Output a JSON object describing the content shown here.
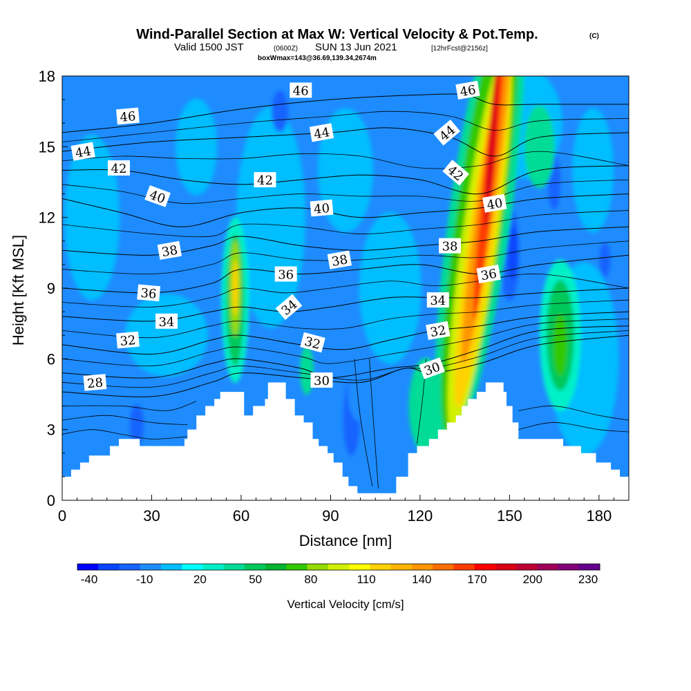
{
  "header": {
    "title": "Wind-Parallel Section at Max W: Vertical Velocity & Pot.Temp.",
    "title_mark": "(C)",
    "valid_prefix": "Valid 1500 JST",
    "valid_utc": "(0600Z)",
    "valid_date": "SUN 13 Jun 2021",
    "forecast_note": "[12hrFcst@2156z]",
    "box_note": "boxWmax=143@36.69,139.34,2674m"
  },
  "chart_data": {
    "type": "heatmap",
    "xlabel": "Distance [nm]",
    "ylabel": "Height [Kft MSL]",
    "xlim": [
      0,
      190
    ],
    "ylim": [
      0,
      18
    ],
    "x_ticks": [
      0,
      30,
      60,
      90,
      120,
      150,
      180
    ],
    "y_ticks": [
      0,
      3,
      6,
      9,
      12,
      15,
      18
    ],
    "colorbar": {
      "title": "Vertical Velocity [cm/s]",
      "labels": [
        "-40",
        "-10",
        "20",
        "50",
        "80",
        "110",
        "140",
        "170",
        "200",
        "230"
      ],
      "colors": [
        "#0000ff",
        "#0a46ff",
        "#1464ff",
        "#1e8cff",
        "#00beff",
        "#00ffff",
        "#00f0c8",
        "#00dc96",
        "#00c85a",
        "#00b432",
        "#32c800",
        "#96dc00",
        "#d2f000",
        "#ffff00",
        "#ffd200",
        "#ffb400",
        "#ff9600",
        "#ff6e00",
        "#ff3c00",
        "#ff0000",
        "#dc0014",
        "#be0032",
        "#a0005a",
        "#820078",
        "#64008c"
      ]
    },
    "terrain": [
      [
        0,
        1.0
      ],
      [
        3,
        1.0
      ],
      [
        3,
        1.3
      ],
      [
        6,
        1.3
      ],
      [
        6,
        1.6
      ],
      [
        9,
        1.6
      ],
      [
        9,
        1.9
      ],
      [
        16,
        1.9
      ],
      [
        16,
        2.3
      ],
      [
        19,
        2.3
      ],
      [
        19,
        2.6
      ],
      [
        26,
        2.6
      ],
      [
        26,
        2.3
      ],
      [
        41,
        2.3
      ],
      [
        41,
        2.6
      ],
      [
        42,
        2.6
      ],
      [
        42,
        3.0
      ],
      [
        45,
        3.0
      ],
      [
        45,
        3.6
      ],
      [
        48,
        3.6
      ],
      [
        48,
        4.0
      ],
      [
        51,
        4.0
      ],
      [
        51,
        4.3
      ],
      [
        53,
        4.3
      ],
      [
        53,
        4.6
      ],
      [
        61,
        4.6
      ],
      [
        61,
        3.6
      ],
      [
        64,
        3.6
      ],
      [
        64,
        4.0
      ],
      [
        68,
        4.0
      ],
      [
        68,
        4.3
      ],
      [
        69,
        4.3
      ],
      [
        69,
        5.0
      ],
      [
        75,
        5.0
      ],
      [
        75,
        4.3
      ],
      [
        78,
        4.3
      ],
      [
        78,
        3.6
      ],
      [
        81,
        3.6
      ],
      [
        81,
        3.3
      ],
      [
        84,
        3.3
      ],
      [
        84,
        2.6
      ],
      [
        86,
        2.6
      ],
      [
        86,
        2.3
      ],
      [
        89,
        2.3
      ],
      [
        89,
        2.0
      ],
      [
        91,
        2.0
      ],
      [
        91,
        1.6
      ],
      [
        94,
        1.6
      ],
      [
        94,
        1.0
      ],
      [
        96,
        1.0
      ],
      [
        96,
        0.6
      ],
      [
        99,
        0.6
      ],
      [
        99,
        0.3
      ],
      [
        112,
        0.3
      ],
      [
        112,
        1.0
      ],
      [
        116,
        1.0
      ],
      [
        116,
        2.0
      ],
      [
        119,
        2.0
      ],
      [
        119,
        2.3
      ],
      [
        123,
        2.3
      ],
      [
        123,
        2.6
      ],
      [
        126,
        2.6
      ],
      [
        126,
        3.0
      ],
      [
        129,
        3.0
      ],
      [
        129,
        3.3
      ],
      [
        132,
        3.3
      ],
      [
        132,
        3.6
      ],
      [
        134,
        3.6
      ],
      [
        134,
        4.0
      ],
      [
        136,
        4.0
      ],
      [
        136,
        4.3
      ],
      [
        139,
        4.3
      ],
      [
        139,
        4.6
      ],
      [
        142,
        4.6
      ],
      [
        142,
        5.0
      ],
      [
        148,
        5.0
      ],
      [
        148,
        4.6
      ],
      [
        149,
        4.6
      ],
      [
        149,
        4.0
      ],
      [
        151,
        4.0
      ],
      [
        151,
        3.3
      ],
      [
        153,
        3.3
      ],
      [
        153,
        2.6
      ],
      [
        168,
        2.6
      ],
      [
        168,
        2.3
      ],
      [
        174,
        2.3
      ],
      [
        174,
        2.0
      ],
      [
        179,
        2.0
      ],
      [
        179,
        1.6
      ],
      [
        184,
        1.6
      ],
      [
        184,
        1.3
      ],
      [
        187,
        1.3
      ],
      [
        187,
        1.0
      ],
      [
        190,
        1.0
      ]
    ],
    "contour_label_font": "serif",
    "theta_contours": [
      {
        "value": 28,
        "pts": [
          [
            0,
            4.6
          ],
          [
            30,
            4.4
          ],
          [
            50,
            5.0
          ],
          [
            60,
            5.4
          ],
          [
            80,
            5.2
          ],
          [
            100,
            5.0
          ],
          [
            115,
            5.6
          ],
          [
            124,
            5.4
          ],
          [
            140,
            5.8
          ],
          [
            160,
            6.6
          ],
          [
            190,
            7.0
          ]
        ]
      },
      {
        "value": 30,
        "pts": [
          [
            0,
            5.4
          ],
          [
            30,
            5.2
          ],
          [
            50,
            5.8
          ],
          [
            60,
            6.0
          ],
          [
            80,
            5.6
          ],
          [
            90,
            5.2
          ],
          [
            110,
            5.6
          ],
          [
            124,
            5.8
          ],
          [
            140,
            6.4
          ],
          [
            160,
            7.2
          ],
          [
            190,
            7.4
          ]
        ]
      },
      {
        "value": 32,
        "pts": [
          [
            0,
            6.6
          ],
          [
            30,
            6.2
          ],
          [
            50,
            6.8
          ],
          [
            60,
            7.0
          ],
          [
            80,
            6.6
          ],
          [
            95,
            6.4
          ],
          [
            110,
            6.8
          ],
          [
            125,
            7.2
          ],
          [
            140,
            7.4
          ],
          [
            160,
            7.8
          ],
          [
            190,
            8.0
          ]
        ]
      },
      {
        "value": 34,
        "pts": [
          [
            0,
            7.8
          ],
          [
            30,
            7.6
          ],
          [
            50,
            8.0
          ],
          [
            60,
            8.2
          ],
          [
            75,
            8.0
          ],
          [
            90,
            8.2
          ],
          [
            110,
            8.6
          ],
          [
            125,
            8.6
          ],
          [
            140,
            8.6
          ],
          [
            160,
            8.8
          ],
          [
            190,
            9.0
          ]
        ]
      },
      {
        "value": 36,
        "pts": [
          [
            0,
            9.0
          ],
          [
            30,
            8.8
          ],
          [
            50,
            9.2
          ],
          [
            60,
            9.8
          ],
          [
            80,
            9.6
          ],
          [
            100,
            9.8
          ],
          [
            120,
            10.0
          ],
          [
            140,
            9.6
          ],
          [
            160,
            10.0
          ],
          [
            190,
            10.4
          ]
        ]
      },
      {
        "value": 38,
        "pts": [
          [
            0,
            10.6
          ],
          [
            30,
            10.4
          ],
          [
            50,
            10.8
          ],
          [
            60,
            11.2
          ],
          [
            80,
            10.8
          ],
          [
            100,
            10.6
          ],
          [
            120,
            10.8
          ],
          [
            140,
            11.0
          ],
          [
            160,
            11.4
          ],
          [
            190,
            11.6
          ]
        ]
      },
      {
        "value": 40,
        "pts": [
          [
            0,
            12.8
          ],
          [
            20,
            12.2
          ],
          [
            40,
            11.6
          ],
          [
            60,
            12.2
          ],
          [
            80,
            12.4
          ],
          [
            100,
            12.0
          ],
          [
            120,
            12.2
          ],
          [
            140,
            12.4
          ],
          [
            160,
            12.8
          ],
          [
            190,
            13.0
          ]
        ]
      },
      {
        "value": 42,
        "pts": [
          [
            0,
            14.0
          ],
          [
            20,
            14.0
          ],
          [
            40,
            13.6
          ],
          [
            60,
            13.4
          ],
          [
            80,
            13.6
          ],
          [
            100,
            13.8
          ],
          [
            120,
            13.6
          ],
          [
            140,
            13.0
          ],
          [
            160,
            14.0
          ],
          [
            190,
            14.2
          ]
        ]
      },
      {
        "value": 44,
        "pts": [
          [
            0,
            14.8
          ],
          [
            30,
            15.2
          ],
          [
            60,
            15.4
          ],
          [
            90,
            15.6
          ],
          [
            110,
            15.8
          ],
          [
            130,
            15.4
          ],
          [
            145,
            14.6
          ],
          [
            160,
            15.4
          ],
          [
            190,
            15.6
          ]
        ]
      },
      {
        "value": 46,
        "pts": [
          [
            0,
            15.6
          ],
          [
            30,
            16.0
          ],
          [
            60,
            16.6
          ],
          [
            90,
            17.0
          ],
          [
            120,
            17.2
          ],
          [
            135,
            17.2
          ],
          [
            145,
            16.8
          ],
          [
            160,
            16.8
          ],
          [
            190,
            16.8
          ]
        ]
      }
    ],
    "contour_labels": [
      {
        "text": "28",
        "x": 11,
        "y": 5.0,
        "rot": -5
      },
      {
        "text": "30",
        "x": 87,
        "y": 5.1,
        "rot": 0
      },
      {
        "text": "30",
        "x": 124,
        "y": 5.6,
        "rot": -20
      },
      {
        "text": "32",
        "x": 22,
        "y": 6.8,
        "rot": -5
      },
      {
        "text": "32",
        "x": 84,
        "y": 6.7,
        "rot": 15
      },
      {
        "text": "32",
        "x": 126,
        "y": 7.2,
        "rot": -10
      },
      {
        "text": "34",
        "x": 35,
        "y": 7.6,
        "rot": 0
      },
      {
        "text": "34",
        "x": 76,
        "y": 8.2,
        "rot": -40
      },
      {
        "text": "34",
        "x": 126,
        "y": 8.5,
        "rot": 0
      },
      {
        "text": "36",
        "x": 29,
        "y": 8.8,
        "rot": 5
      },
      {
        "text": "36",
        "x": 75,
        "y": 9.6,
        "rot": 0
      },
      {
        "text": "36",
        "x": 143,
        "y": 9.6,
        "rot": -10
      },
      {
        "text": "38",
        "x": 36,
        "y": 10.6,
        "rot": -10
      },
      {
        "text": "38",
        "x": 93,
        "y": 10.2,
        "rot": -10
      },
      {
        "text": "38",
        "x": 130,
        "y": 10.8,
        "rot": 0
      },
      {
        "text": "40",
        "x": 32,
        "y": 12.9,
        "rot": 20
      },
      {
        "text": "40",
        "x": 87,
        "y": 12.4,
        "rot": -5
      },
      {
        "text": "40",
        "x": 145,
        "y": 12.6,
        "rot": -10
      },
      {
        "text": "42",
        "x": 19,
        "y": 14.1,
        "rot": 0
      },
      {
        "text": "42",
        "x": 68,
        "y": 13.6,
        "rot": 0
      },
      {
        "text": "42",
        "x": 132,
        "y": 13.9,
        "rot": 40
      },
      {
        "text": "44",
        "x": 7,
        "y": 14.8,
        "rot": -10
      },
      {
        "text": "44",
        "x": 87,
        "y": 15.6,
        "rot": -10
      },
      {
        "text": "44",
        "x": 129,
        "y": 15.6,
        "rot": -40
      },
      {
        "text": "46",
        "x": 22,
        "y": 16.3,
        "rot": -5
      },
      {
        "text": "46",
        "x": 80,
        "y": 17.4,
        "rot": 0
      },
      {
        "text": "46",
        "x": 136,
        "y": 17.4,
        "rot": -10
      }
    ]
  }
}
